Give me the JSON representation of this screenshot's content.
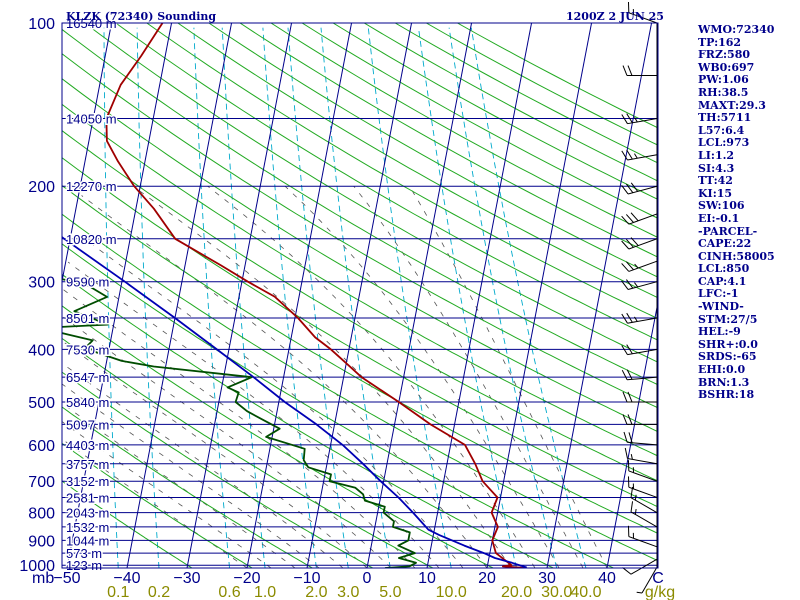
{
  "header": {
    "title": "KLZK (72340) Sounding",
    "time": "1200Z  2 JUN 25"
  },
  "indices": [
    "WMO:72340",
    "TP:162",
    "FRZ:580",
    "WB0:697",
    "PW:1.06",
    "RH:38.5",
    "MAXT:29.3",
    "TH:5711",
    "L57:6.4",
    "LCL:973",
    "LI:1.2",
    "SI:4.3",
    "TT:42",
    "KI:15",
    "SW:106",
    "EI:-0.1",
    "-PARCEL-",
    "CAPE:22",
    "CINH:58005",
    "LCL:850",
    "CAP:4.1",
    "LFC:-1",
    "-WIND-",
    "STM:27/5",
    "HEL:-9",
    "SHR+:0.0",
    "SRDS:-65",
    "EHI:0.0",
    "BRN:1.3",
    "BSHR:18"
  ],
  "colors": {
    "frame": "#00008b",
    "isotherm": "#00008b",
    "dry_adiabat": "#22aa22",
    "moist_adiabat": "#555555",
    "mixing_ratio": "#00aacc",
    "temperature": "#a00000",
    "dewpoint": "#004d00",
    "parcel": "#0000b4",
    "mixing_label": "#8b8b00"
  },
  "chart_data": {
    "type": "skew-t",
    "title": "KLZK (72340) Sounding",
    "pressure_axis_label": "mb",
    "temperature_axis_label": "C",
    "mixing_ratio_unit": "g/kg",
    "pressure_ticks": [
      "100",
      "200",
      "300",
      "400",
      "500",
      "600",
      "700",
      "800",
      "900",
      "1000"
    ],
    "pressure_tick_values": [
      100,
      200,
      300,
      400,
      500,
      600,
      700,
      800,
      900,
      1000
    ],
    "temperature_ticks": [
      "-50",
      "-40",
      "-30",
      "-20",
      "-10",
      "0",
      "10",
      "20",
      "30",
      "40"
    ],
    "temperature_tick_values": [
      -50,
      -40,
      -30,
      -20,
      -10,
      0,
      10,
      20,
      30,
      40
    ],
    "mixing_ratio_labels": [
      "0.1",
      "0.2",
      "0.6",
      "1.0",
      "2.0",
      "3.0",
      "5.0",
      "10.0",
      "20.0",
      "30.0",
      "40.0"
    ],
    "mixing_ratio_values": [
      0.1,
      0.2,
      0.6,
      1.0,
      2.0,
      3.0,
      5.0,
      10.0,
      20.0,
      30.0,
      40.0
    ],
    "height_levels": [
      {
        "p": 100,
        "label": "16540 m"
      },
      {
        "p": 150,
        "label": "14050 m"
      },
      {
        "p": 200,
        "label": "12270 m"
      },
      {
        "p": 250,
        "label": "10820 m"
      },
      {
        "p": 300,
        "label": "9590 m"
      },
      {
        "p": 350,
        "label": "8501 m"
      },
      {
        "p": 400,
        "label": "7530 m"
      },
      {
        "p": 450,
        "label": "6547 m"
      },
      {
        "p": 500,
        "label": "5840 m"
      },
      {
        "p": 550,
        "label": "5097 m"
      },
      {
        "p": 600,
        "label": "4403 m"
      },
      {
        "p": 650,
        "label": "3757 m"
      },
      {
        "p": 700,
        "label": "3152 m"
      },
      {
        "p": 750,
        "label": "2581 m"
      },
      {
        "p": 800,
        "label": "2043 m"
      },
      {
        "p": 850,
        "label": "1532 m"
      },
      {
        "p": 900,
        "label": "1044 m"
      },
      {
        "p": 950,
        "label": "573 m"
      },
      {
        "p": 1000,
        "label": "123 m"
      }
    ],
    "series": [
      {
        "key": "temperature",
        "points": [
          [
            1012,
            26.6
          ],
          [
            1005,
            22.6
          ],
          [
            1000,
            24
          ],
          [
            950,
            21
          ],
          [
            900,
            20
          ],
          [
            850,
            20.5
          ],
          [
            800,
            19
          ],
          [
            750,
            19.5
          ],
          [
            700,
            16.5
          ],
          [
            650,
            14.7
          ],
          [
            600,
            12.4
          ],
          [
            550,
            6
          ],
          [
            500,
            0
          ],
          [
            450,
            -7
          ],
          [
            420,
            -10.5
          ],
          [
            400,
            -13
          ],
          [
            380,
            -16
          ],
          [
            350,
            -19.5
          ],
          [
            320,
            -24
          ],
          [
            300,
            -29
          ],
          [
            280,
            -34
          ],
          [
            250,
            -42.5
          ],
          [
            220,
            -47
          ],
          [
            200,
            -51
          ],
          [
            180,
            -54.5
          ],
          [
            165,
            -57
          ],
          [
            150,
            -57.8
          ],
          [
            130,
            -56.5
          ],
          [
            115,
            -54
          ],
          [
            100,
            -51.5
          ]
        ]
      },
      {
        "key": "dewpoint",
        "points": [
          [
            1012,
            3
          ],
          [
            1005,
            7
          ],
          [
            990,
            8
          ],
          [
            970,
            5
          ],
          [
            950,
            7.5
          ],
          [
            920,
            4.5
          ],
          [
            900,
            6
          ],
          [
            870,
            6
          ],
          [
            850,
            3
          ],
          [
            830,
            3
          ],
          [
            800,
            1
          ],
          [
            780,
            1
          ],
          [
            760,
            -2.5
          ],
          [
            740,
            -3
          ],
          [
            720,
            -4.5
          ],
          [
            700,
            -9
          ],
          [
            680,
            -9
          ],
          [
            660,
            -13
          ],
          [
            640,
            -14
          ],
          [
            610,
            -14.2
          ],
          [
            580,
            -21
          ],
          [
            560,
            -19
          ],
          [
            540,
            -22
          ],
          [
            520,
            -25
          ],
          [
            500,
            -27.2
          ],
          [
            480,
            -27
          ],
          [
            470,
            -29
          ],
          [
            450,
            -25.3
          ],
          [
            430,
            -42
          ],
          [
            420,
            -47.5
          ],
          [
            405,
            -52
          ],
          [
            395,
            -53.8
          ],
          [
            385,
            -53
          ],
          [
            375,
            -57.5
          ],
          [
            365,
            -62
          ],
          [
            360,
            -51
          ],
          [
            340,
            -57
          ],
          [
            320,
            -52
          ],
          [
            305,
            -55.5
          ],
          [
            295,
            -61
          ],
          [
            280,
            -62
          ],
          [
            250,
            -65.5
          ],
          [
            220,
            -69.5
          ],
          [
            200,
            -74
          ],
          [
            170,
            -79
          ],
          [
            150,
            -84.5
          ],
          [
            130,
            -86.5
          ],
          [
            100,
            -94
          ]
        ]
      },
      {
        "key": "parcel",
        "points": [
          [
            1010,
            26.6
          ],
          [
            990,
            24
          ],
          [
            970,
            21
          ],
          [
            950,
            19
          ],
          [
            920,
            15.5
          ],
          [
            900,
            13.3
          ],
          [
            880,
            11
          ],
          [
            860,
            9
          ],
          [
            850,
            8.5
          ],
          [
            800,
            5.9
          ],
          [
            750,
            3
          ],
          [
            700,
            -0.5
          ],
          [
            650,
            -4
          ],
          [
            600,
            -8
          ],
          [
            550,
            -13
          ],
          [
            500,
            -19
          ],
          [
            450,
            -25
          ],
          [
            400,
            -32
          ],
          [
            350,
            -40
          ],
          [
            300,
            -49.5
          ],
          [
            250,
            -61
          ],
          [
            200,
            -74
          ],
          [
            160,
            -86
          ],
          [
            130,
            -98
          ],
          [
            110,
            -108
          ]
        ]
      }
    ],
    "wind_barbs": [
      {
        "p": 1008,
        "dir": 210,
        "spd": 5
      },
      {
        "p": 975,
        "dir": 240,
        "spd": 10
      },
      {
        "p": 925,
        "dir": 290,
        "spd": 15
      },
      {
        "p": 850,
        "dir": 300,
        "spd": 15
      },
      {
        "p": 800,
        "dir": 300,
        "spd": 15
      },
      {
        "p": 750,
        "dir": 290,
        "spd": 15
      },
      {
        "p": 700,
        "dir": 290,
        "spd": 15
      },
      {
        "p": 650,
        "dir": 280,
        "spd": 15
      },
      {
        "p": 600,
        "dir": 275,
        "spd": 20
      },
      {
        "p": 550,
        "dir": 270,
        "spd": 20
      },
      {
        "p": 500,
        "dir": 270,
        "spd": 20
      },
      {
        "p": 450,
        "dir": 265,
        "spd": 20
      },
      {
        "p": 400,
        "dir": 260,
        "spd": 20
      },
      {
        "p": 350,
        "dir": 260,
        "spd": 25
      },
      {
        "p": 300,
        "dir": 255,
        "spd": 25
      },
      {
        "p": 275,
        "dir": 250,
        "spd": 25
      },
      {
        "p": 250,
        "dir": 250,
        "spd": 30
      },
      {
        "p": 225,
        "dir": 250,
        "spd": 30
      },
      {
        "p": 200,
        "dir": 255,
        "spd": 30
      },
      {
        "p": 175,
        "dir": 260,
        "spd": 25
      },
      {
        "p": 150,
        "dir": 260,
        "spd": 25
      },
      {
        "p": 125,
        "dir": 270,
        "spd": 20
      },
      {
        "p": 100,
        "dir": 290,
        "spd": 15
      }
    ]
  }
}
